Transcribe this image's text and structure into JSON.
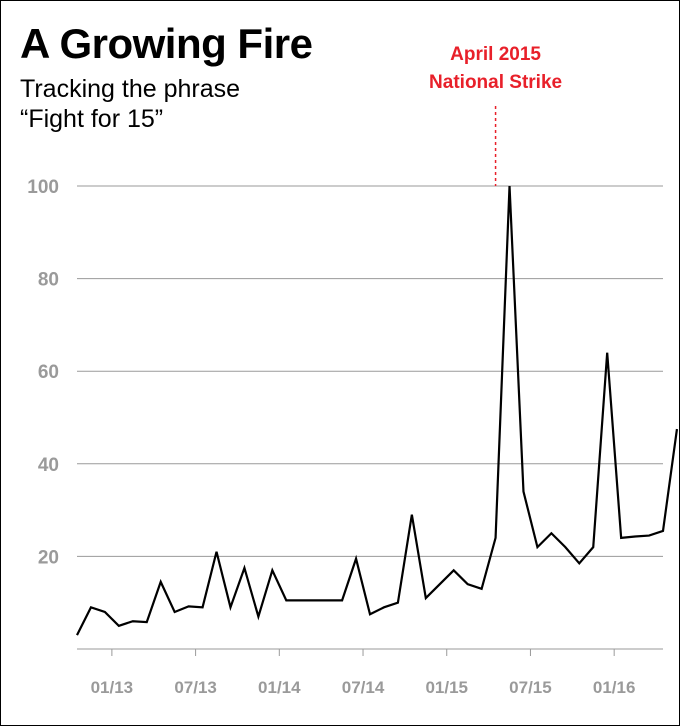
{
  "title": "A Growing Fire",
  "subtitle_line1": "Tracking the phrase",
  "subtitle_line2": "“Fight for 15”",
  "annotation": {
    "line1": "April 2015",
    "line2": "National Strike",
    "x": 30,
    "color": "#e8202a"
  },
  "colors": {
    "line": "#000000",
    "grid": "#9a9a9a",
    "tick_text": "#9a9a9a",
    "annotation": "#e8202a"
  },
  "chart_data": {
    "type": "line",
    "title": "A Growing Fire",
    "subtitle": "Tracking the phrase “Fight for 15”",
    "xlabel": "",
    "ylabel": "",
    "ylim": [
      0,
      100
    ],
    "yticks": [
      20,
      40,
      60,
      80,
      100
    ],
    "xlim": [
      0,
      42
    ],
    "xticks": [
      {
        "x": 2.5,
        "label": "01/13"
      },
      {
        "x": 8.5,
        "label": "07/13"
      },
      {
        "x": 14.5,
        "label": "01/14"
      },
      {
        "x": 20.5,
        "label": "07/14"
      },
      {
        "x": 26.5,
        "label": "01/15"
      },
      {
        "x": 32.5,
        "label": "07/15"
      },
      {
        "x": 38.5,
        "label": "01/16"
      }
    ],
    "grid": true,
    "series": [
      {
        "values": [
          3,
          9,
          8,
          5,
          6,
          5.8,
          14.5,
          8,
          9.2,
          9,
          21,
          9,
          17.5,
          7,
          17,
          10.5,
          10.5,
          10.5,
          10.5,
          10.5,
          19.5,
          7.5,
          9,
          10,
          29,
          11,
          14,
          17,
          14,
          13,
          24,
          100,
          34,
          22,
          25,
          22,
          18.5,
          22,
          64,
          24,
          24.3,
          24.5,
          25.5,
          47.5
        ]
      }
    ]
  }
}
